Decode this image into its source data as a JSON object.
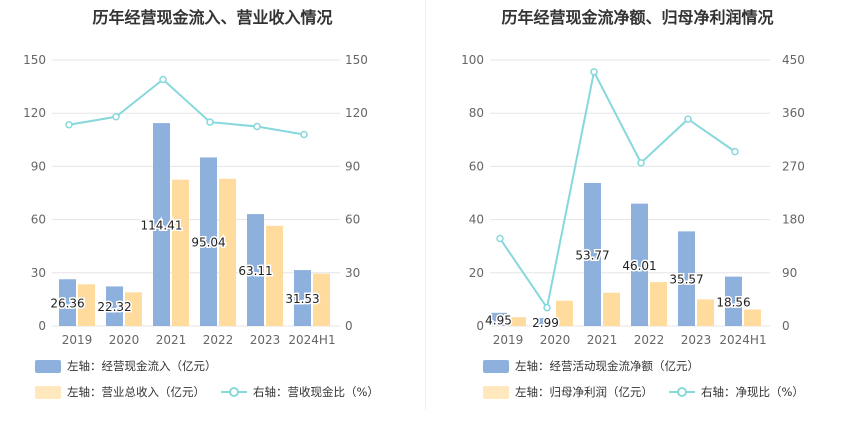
{
  "colors": {
    "bar_primary": "#8eb0dc",
    "bar_secondary": "#ffdb9e",
    "line": "#86d8dc",
    "grid": "#e6e6e6",
    "axis_text": "#666666"
  },
  "chart_data": [
    {
      "type": "bar",
      "title": "历年经营现金流入、营业收入情况",
      "categories": [
        "2019",
        "2020",
        "2021",
        "2022",
        "2023",
        "2024H1"
      ],
      "y_left": {
        "ticks": [
          "0",
          "30",
          "60",
          "90",
          "120",
          "150"
        ],
        "ylim": [
          0,
          150
        ]
      },
      "y_right": {
        "ticks": [
          "0",
          "30",
          "60",
          "90",
          "120",
          "150"
        ],
        "ylim": [
          0,
          150
        ]
      },
      "grid": true,
      "series": [
        {
          "name": "左轴：经营现金流入（亿元）",
          "kind": "bar",
          "axis": "left",
          "values": [
            26.36,
            22.32,
            114.41,
            95.04,
            63.11,
            31.53
          ],
          "labels": [
            "26.36",
            "22.32",
            "114.41",
            "95.04",
            "63.11",
            "31.53"
          ]
        },
        {
          "name": "左轴：营业总收入（亿元）",
          "kind": "bar",
          "axis": "left",
          "values": [
            23.5,
            19.0,
            82.5,
            83.0,
            56.5,
            29.5
          ]
        },
        {
          "name": "右轴：营收现金比（%）",
          "kind": "line",
          "axis": "right",
          "values": [
            113.5,
            118,
            139,
            115,
            112.5,
            108
          ]
        }
      ],
      "legend": {
        "row1": [
          {
            "label": "左轴：经营现金流入（亿元）",
            "swatch": "bar_primary"
          }
        ],
        "row2": [
          {
            "label": "左轴：营业总收入（亿元）",
            "swatch": "bar_secondary"
          },
          {
            "label": "右轴：营收现金比（%）",
            "swatch": "line"
          }
        ]
      }
    },
    {
      "type": "bar",
      "title": "历年经营现金流净额、归母净利润情况",
      "categories": [
        "2019",
        "2020",
        "2021",
        "2022",
        "2023",
        "2024H1"
      ],
      "y_left": {
        "ticks": [
          "0",
          "20",
          "40",
          "60",
          "80",
          "100"
        ],
        "ylim": [
          0,
          100
        ]
      },
      "y_right": {
        "ticks": [
          "0",
          "90",
          "180",
          "270",
          "360",
          "450"
        ],
        "ylim": [
          0,
          450
        ]
      },
      "grid": true,
      "series": [
        {
          "name": "左轴：经营活动现金流净额（亿元）",
          "kind": "bar",
          "axis": "left",
          "values": [
            4.95,
            2.99,
            53.77,
            46.01,
            35.57,
            18.56
          ],
          "labels": [
            "4.95",
            "2.99",
            "53.77",
            "46.01",
            "35.57",
            "18.56"
          ]
        },
        {
          "name": "左轴：归母净利润（亿元）",
          "kind": "bar",
          "axis": "left",
          "values": [
            3.3,
            9.5,
            12.5,
            16.5,
            10.0,
            6.2
          ]
        },
        {
          "name": "右轴：净现比（%）",
          "kind": "line",
          "axis": "right",
          "values": [
            148,
            31,
            430,
            276,
            350,
            295
          ]
        }
      ],
      "legend": {
        "row1": [
          {
            "label": "左轴：经营活动现金流净额（亿元）",
            "swatch": "bar_primary"
          }
        ],
        "row2": [
          {
            "label": "左轴：归母净利润（亿元）",
            "swatch": "bar_secondary"
          },
          {
            "label": "右轴：净现比（%）",
            "swatch": "line"
          }
        ]
      }
    }
  ]
}
